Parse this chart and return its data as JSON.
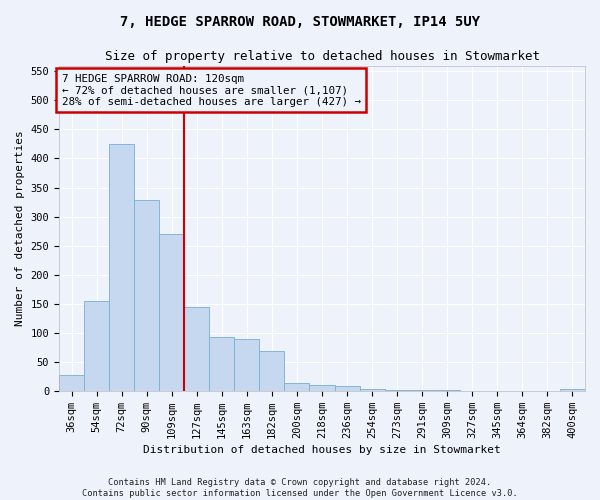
{
  "title_line1": "7, HEDGE SPARROW ROAD, STOWMARKET, IP14 5UY",
  "title_line2": "Size of property relative to detached houses in Stowmarket",
  "xlabel": "Distribution of detached houses by size in Stowmarket",
  "ylabel": "Number of detached properties",
  "footnote": "Contains HM Land Registry data © Crown copyright and database right 2024.\nContains public sector information licensed under the Open Government Licence v3.0.",
  "bar_labels": [
    "36sqm",
    "54sqm",
    "72sqm",
    "90sqm",
    "109sqm",
    "127sqm",
    "145sqm",
    "163sqm",
    "182sqm",
    "200sqm",
    "218sqm",
    "236sqm",
    "254sqm",
    "273sqm",
    "291sqm",
    "309sqm",
    "327sqm",
    "345sqm",
    "364sqm",
    "382sqm",
    "400sqm"
  ],
  "bar_values": [
    27,
    155,
    425,
    328,
    270,
    145,
    92,
    90,
    68,
    13,
    10,
    8,
    4,
    1,
    1,
    1,
    0,
    0,
    0,
    0,
    3
  ],
  "bar_color": "#c5d8f0",
  "bar_edge_color": "#7aadd4",
  "vline_x": 4.5,
  "vline_color": "#cc0000",
  "annotation_text": "7 HEDGE SPARROW ROAD: 120sqm\n← 72% of detached houses are smaller (1,107)\n28% of semi-detached houses are larger (427) →",
  "annotation_box_color": "#cc0000",
  "ylim": [
    0,
    560
  ],
  "yticks": [
    0,
    50,
    100,
    150,
    200,
    250,
    300,
    350,
    400,
    450,
    500,
    550
  ],
  "background_color": "#eef2fb",
  "grid_color": "#ffffff",
  "title_fontsize": 10,
  "subtitle_fontsize": 9,
  "axis_label_fontsize": 8,
  "tick_fontsize": 7.5,
  "footnote_fontsize": 6.2
}
